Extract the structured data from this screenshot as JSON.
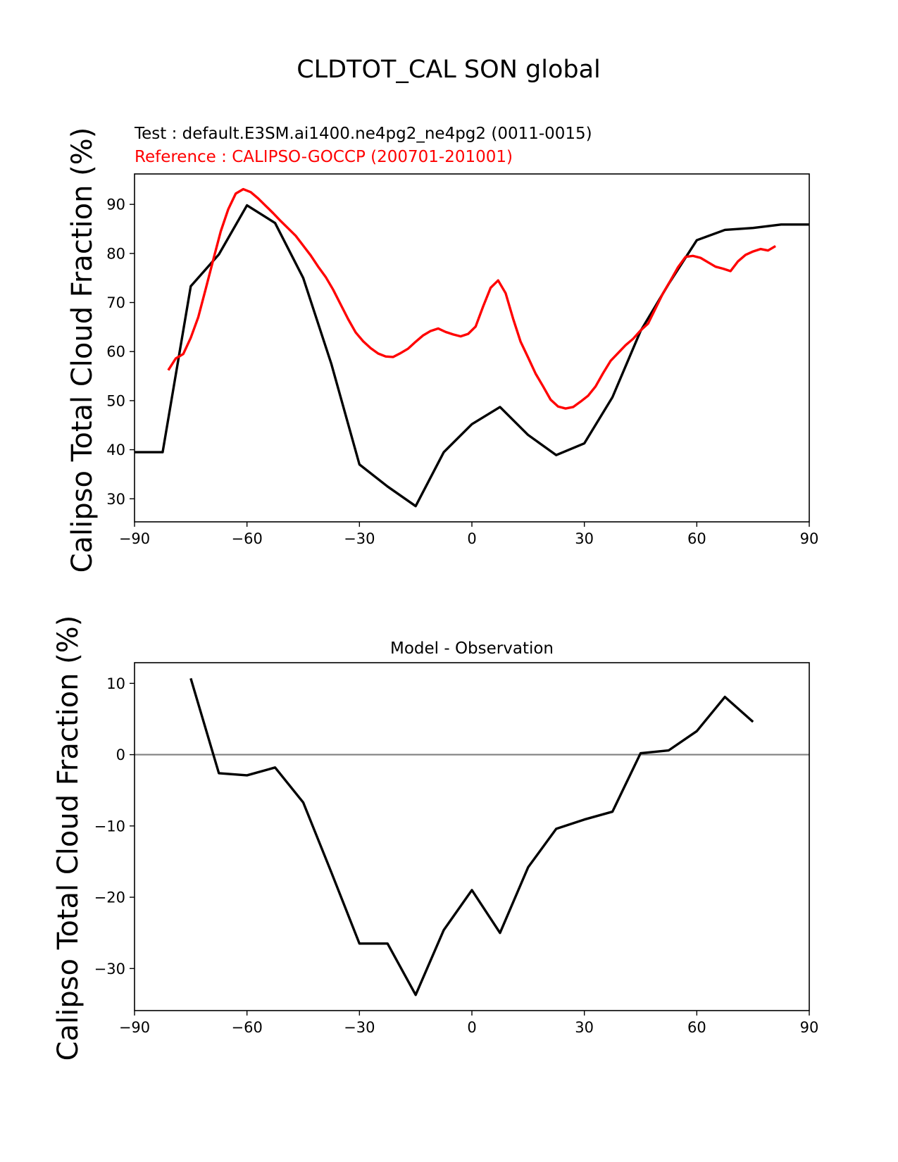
{
  "chart_data": [
    {
      "type": "line",
      "title": "CLDTOT_CAL SON global",
      "test_label": "Test : default.E3SM.ai1400.ne4pg2_ne4pg2 (0011-0015)",
      "reference_label": "Reference : CALIPSO-GOCCP (200701-201001)",
      "xlabel": "",
      "ylabel": "Calipso Total Cloud Fraction (%)",
      "xlim": [
        -90,
        90
      ],
      "ylim": [
        25.3,
        96.2
      ],
      "xticks": [
        "−90",
        "−60",
        "−30",
        "0",
        "30",
        "60",
        "90"
      ],
      "xtick_values": [
        -90,
        -60,
        -30,
        0,
        30,
        60,
        90
      ],
      "yticks": [
        "30",
        "40",
        "50",
        "60",
        "70",
        "80",
        "90"
      ],
      "ytick_values": [
        30,
        40,
        50,
        60,
        70,
        80,
        90
      ],
      "grid": false,
      "series": [
        {
          "name": "Test",
          "color": "#000000",
          "x": [
            -90,
            -82.5,
            -75,
            -67.5,
            -60,
            -52.5,
            -45,
            -37.5,
            -30,
            -22.5,
            -15,
            -7.5,
            0,
            7.5,
            15,
            22.5,
            30,
            37.5,
            45,
            52.5,
            60,
            67.5,
            75,
            82.5,
            90
          ],
          "y": [
            39.5,
            39.5,
            73.3,
            79.8,
            89.8,
            86.2,
            75.0,
            57.5,
            37.0,
            32.5,
            28.5,
            39.5,
            45.2,
            48.7,
            43.0,
            38.9,
            41.3,
            50.7,
            64.2,
            73.8,
            82.7,
            84.8,
            85.2,
            85.9,
            85.9
          ]
        },
        {
          "name": "Reference",
          "color": "#ff0000",
          "x": [
            -81,
            -79,
            -77,
            -75,
            -73,
            -71,
            -69,
            -67,
            -65,
            -63,
            -61,
            -59,
            -57,
            -55,
            -53,
            -51,
            -49,
            -47,
            -45,
            -43,
            -41,
            -39,
            -37,
            -35,
            -33,
            -31,
            -29,
            -27,
            -25,
            -23,
            -21,
            -19,
            -17,
            -15,
            -13,
            -11,
            -9,
            -7,
            -5,
            -3,
            -1,
            1,
            3,
            5,
            7,
            9,
            11,
            13,
            15,
            17,
            19,
            21,
            23,
            25,
            27,
            29,
            31,
            33,
            35,
            37,
            39,
            41,
            43,
            45,
            47,
            49,
            51,
            53,
            55,
            57,
            59,
            61,
            63,
            65,
            67,
            69,
            71,
            73,
            75,
            77,
            79,
            81
          ],
          "y": [
            56.2,
            58.6,
            59.5,
            62.8,
            67.0,
            72.8,
            78.7,
            84.5,
            89.0,
            92.2,
            93.1,
            92.5,
            91.2,
            89.7,
            88.2,
            86.6,
            85.1,
            83.6,
            81.6,
            79.6,
            77.3,
            75.2,
            72.6,
            69.6,
            66.6,
            63.9,
            62.1,
            60.7,
            59.6,
            59.0,
            58.9,
            59.7,
            60.6,
            62.0,
            63.3,
            64.2,
            64.7,
            64.0,
            63.5,
            63.1,
            63.6,
            65.1,
            69.2,
            73.0,
            74.5,
            71.9,
            66.7,
            62.0,
            58.8,
            55.5,
            52.9,
            50.2,
            48.8,
            48.4,
            48.7,
            49.8,
            51.0,
            52.9,
            55.6,
            58.1,
            59.7,
            61.3,
            62.6,
            64.3,
            65.7,
            68.8,
            71.9,
            74.5,
            77.2,
            79.3,
            79.5,
            79.1,
            78.2,
            77.3,
            76.9,
            76.4,
            78.4,
            79.7,
            80.4,
            80.9,
            80.6,
            81.5
          ]
        }
      ]
    },
    {
      "type": "line",
      "title": "Model - Observation",
      "xlabel": "",
      "ylabel": "Calipso Total Cloud Fraction (%)",
      "xlim": [
        -90,
        90
      ],
      "ylim": [
        -35.9,
        12.9
      ],
      "xticks": [
        "−90",
        "−60",
        "−30",
        "0",
        "30",
        "60",
        "90"
      ],
      "xtick_values": [
        -90,
        -60,
        -30,
        0,
        30,
        60,
        90
      ],
      "yticks": [
        "10",
        "0",
        "−10",
        "−20",
        "−30"
      ],
      "ytick_values": [
        10,
        0,
        -10,
        -20,
        -30
      ],
      "grid": false,
      "reference_line": {
        "y": 0,
        "color": "#808080"
      },
      "series": [
        {
          "name": "Model - Observation",
          "color": "#000000",
          "x": [
            -75,
            -67.5,
            -60,
            -52.5,
            -45,
            -37.5,
            -30,
            -22.5,
            -15,
            -7.5,
            0,
            7.5,
            15,
            22.5,
            30,
            37.5,
            45,
            52.5,
            60,
            67.5,
            75
          ],
          "y": [
            10.7,
            -2.6,
            -2.9,
            -1.8,
            -6.7,
            -16.5,
            -26.5,
            -26.5,
            -33.7,
            -24.6,
            -19.0,
            -25.0,
            -15.8,
            -10.4,
            -9.1,
            -8.0,
            0.2,
            0.6,
            3.3,
            8.1,
            4.6
          ]
        }
      ]
    }
  ]
}
